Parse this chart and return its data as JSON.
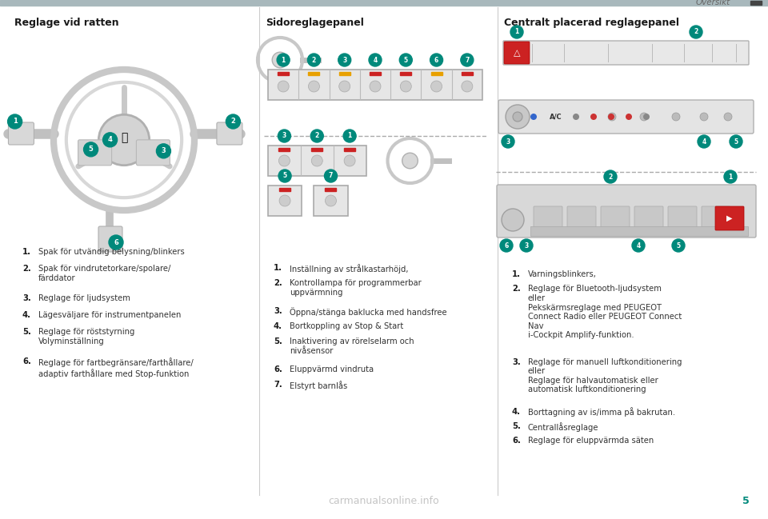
{
  "page_number": "5",
  "header_text": "Översikt",
  "header_bar_color": "#a8b8bc",
  "background_color": "#ffffff",
  "watermark_text": "carmanualsonline.info",
  "watermark_color": "#bbbbbb",
  "bullet_color": "#00897b",
  "section1_title": "Reglage vid ratten",
  "section2_title": "Sidoreglagepanel",
  "section3_title": "Centralt placerad reglagepanel",
  "section1_items": [
    {
      "num": "1.",
      "text": "Spak för utvändig belysning/blinkers"
    },
    {
      "num": "2.",
      "text": "Spak för vindrutetorkare/spolare/\nfärddator"
    },
    {
      "num": "3.",
      "text": "Reglage för ljudsystem"
    },
    {
      "num": "4.",
      "text": "Lägesväljare för instrumentpanelen"
    },
    {
      "num": "5.",
      "text": "Reglage för röststyrning\nVolyminställning"
    },
    {
      "num": "6.",
      "text": "Reglage för fartbegränsare/farthållare/\nadaptiv farthållare med Stop-funktion"
    }
  ],
  "section2_items": [
    {
      "num": "1.",
      "text": "Inställning av strålkastarhöjd,"
    },
    {
      "num": "2.",
      "text": "Kontrollampa för programmerbar\nuppvärmning"
    },
    {
      "num": "3.",
      "text": "Öppna/stänga baklucka med handsfree"
    },
    {
      "num": "4.",
      "text": "Bortkoppling av Stop & Start"
    },
    {
      "num": "5.",
      "text": "Inaktivering av rörelselarm och\nnivåsensor"
    },
    {
      "num": "6.",
      "text": "Eluppvärmd vindruta"
    },
    {
      "num": "7.",
      "text": "Elstyrt barnlås"
    }
  ],
  "section3_items": [
    {
      "num": "1.",
      "text": "Varningsblinkers,"
    },
    {
      "num": "2.",
      "text": "Reglage för Bluetooth-ljudsystem\neller\nPekskärmsreglage med PEUGEOT\nConnect Radio eller PEUGEOT Connect\nNav\ni-Cockpit Amplify-funktion."
    },
    {
      "num": "3.",
      "text": "Reglage för manuell luftkonditionering\neller\nReglage för halvautomatisk eller\nautomatisk luftkonditionering"
    },
    {
      "num": "4.",
      "text": "Borttagning av is/imma på bakrutan."
    },
    {
      "num": "5.",
      "text": "Centrallåsreglage"
    },
    {
      "num": "6.",
      "text": "Reglage för eluppvärmda säten"
    }
  ],
  "col_dividers": [
    0.338,
    0.648
  ],
  "title_fontsize": 9.0,
  "body_fontsize": 7.2,
  "num_fontsize": 7.2
}
